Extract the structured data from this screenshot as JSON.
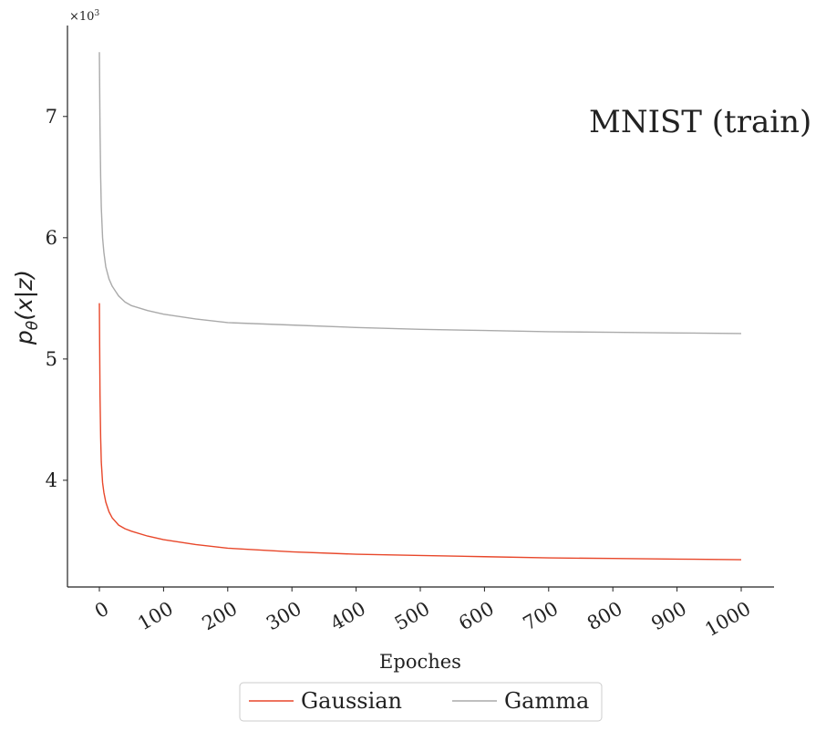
{
  "chart_data": {
    "type": "line",
    "title": "MNIST (train)",
    "xlabel": "Epoches",
    "ylabel": "pθ(x|z)",
    "ylabel_parts": {
      "p": "p",
      "sub": "θ",
      "rest": "(x|z)"
    },
    "y_multiplier": "×10³",
    "y_multiplier_parts": {
      "base": "×10",
      "exp": "3"
    },
    "xlim": [
      -50,
      1050
    ],
    "ylim": [
      3.12,
      7.75
    ],
    "xticks": [
      0,
      100,
      200,
      300,
      400,
      500,
      600,
      700,
      800,
      900,
      1000
    ],
    "xtick_labels": [
      "0",
      "100",
      "200",
      "300",
      "400",
      "500",
      "600",
      "700",
      "800",
      "900",
      "1000"
    ],
    "yticks": [
      4,
      5,
      6,
      7
    ],
    "ytick_labels": [
      "4",
      "5",
      "6",
      "7"
    ],
    "grid": false,
    "legend_position": "bottom-center",
    "series": [
      {
        "name": "Gaussian",
        "color": "#e8472a",
        "x": [
          0,
          1,
          2,
          3,
          5,
          7,
          10,
          15,
          20,
          30,
          40,
          50,
          75,
          100,
          150,
          200,
          300,
          400,
          500,
          600,
          700,
          800,
          900,
          1000
        ],
        "y": [
          5.46,
          4.7,
          4.35,
          4.15,
          3.98,
          3.9,
          3.82,
          3.74,
          3.69,
          3.63,
          3.6,
          3.58,
          3.54,
          3.51,
          3.47,
          3.44,
          3.41,
          3.39,
          3.38,
          3.37,
          3.36,
          3.355,
          3.35,
          3.345
        ]
      },
      {
        "name": "Gamma",
        "color": "#aaaaaa",
        "x": [
          0,
          1,
          2,
          3,
          5,
          7,
          10,
          15,
          20,
          30,
          40,
          50,
          75,
          100,
          150,
          200,
          300,
          400,
          500,
          600,
          700,
          800,
          900,
          1000
        ],
        "y": [
          7.53,
          6.9,
          6.5,
          6.25,
          6.0,
          5.88,
          5.76,
          5.66,
          5.6,
          5.52,
          5.47,
          5.44,
          5.4,
          5.37,
          5.33,
          5.3,
          5.28,
          5.26,
          5.245,
          5.235,
          5.225,
          5.22,
          5.215,
          5.21
        ]
      }
    ]
  }
}
